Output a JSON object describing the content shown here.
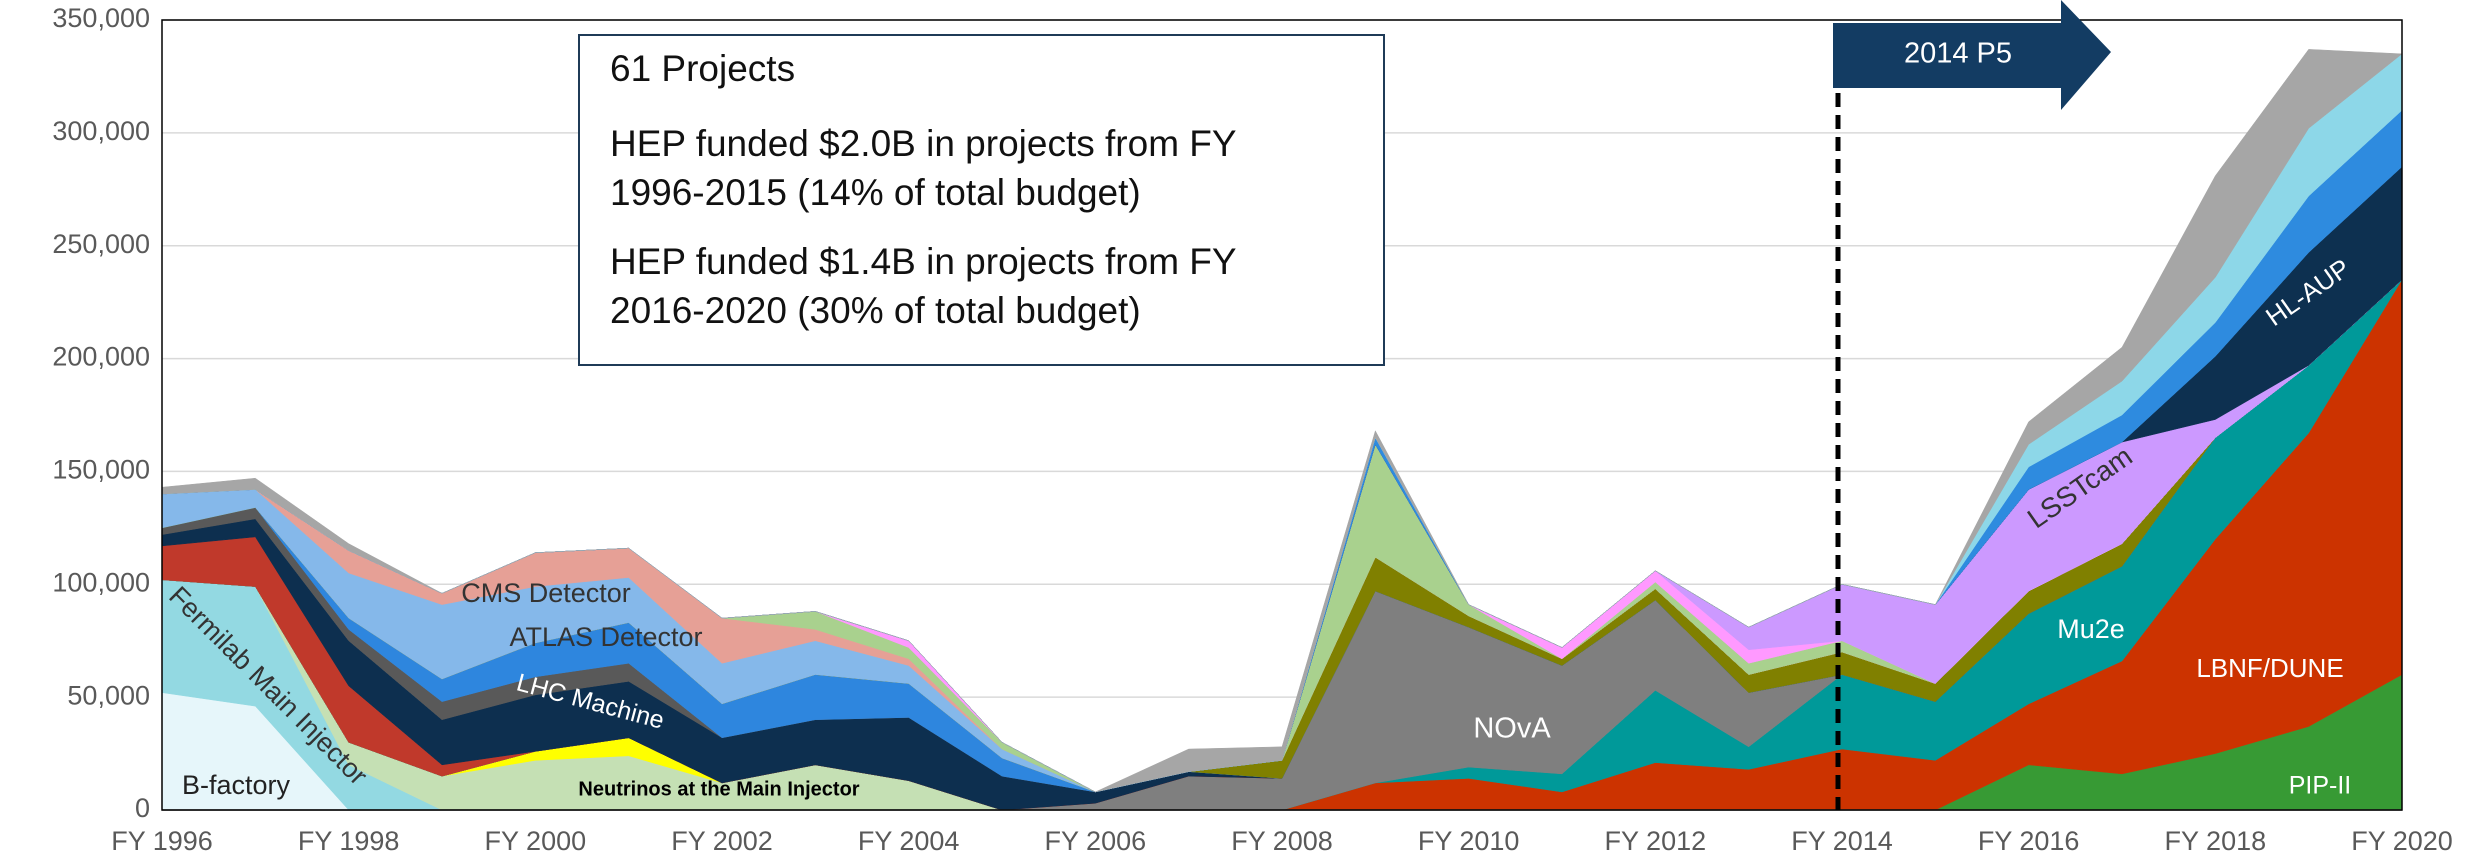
{
  "chart_data": {
    "type": "stacked_area",
    "categories": [
      "FY 1996",
      null,
      "FY 1998",
      null,
      "FY 2000",
      null,
      "FY 2002",
      null,
      "FY 2004",
      null,
      "FY 2006",
      null,
      "FY 2008",
      null,
      "FY 2010",
      null,
      "FY 2012",
      null,
      "FY 2014",
      null,
      "FY 2016",
      null,
      "FY 2018",
      null,
      "FY 2020"
    ],
    "ylim": [
      0,
      350000
    ],
    "yticks": [
      0,
      {
        "value": 50000,
        "label": "50,000"
      },
      {
        "value": 100000,
        "label": "100,000"
      },
      {
        "value": 150000,
        "label": "150,000"
      },
      {
        "value": 200000,
        "label": "200,000"
      },
      {
        "value": 250000,
        "label": "250,000"
      },
      {
        "value": 300000,
        "label": "300,000"
      },
      {
        "value": 350000,
        "label": "350,000"
      }
    ],
    "grid": true,
    "series": [
      {
        "name": "B-factory",
        "color": "#e6f6fa",
        "values": [
          52000,
          46000,
          0,
          0,
          0,
          0,
          0,
          0,
          0,
          0,
          0,
          0,
          0,
          0,
          0,
          0,
          0,
          0,
          0,
          0,
          0,
          0,
          0,
          0,
          0
        ]
      },
      {
        "name": "Fermilab Main Injector",
        "color": "#93d9e2",
        "values": [
          50000,
          53000,
          20000,
          0,
          0,
          0,
          0,
          0,
          0,
          0,
          0,
          0,
          0,
          0,
          0,
          0,
          0,
          0,
          0,
          0,
          0,
          0,
          0,
          0,
          0
        ]
      },
      {
        "name": "Neutrinos at the Main Injector",
        "color": "#c5e0b4",
        "values": [
          0,
          0,
          10000,
          15000,
          22000,
          24000,
          12000,
          20000,
          13000,
          0,
          0,
          0,
          0,
          0,
          0,
          0,
          0,
          0,
          0,
          0,
          0,
          0,
          0,
          0,
          0
        ]
      },
      {
        "color": "#ffff00",
        "values": [
          0,
          0,
          0,
          0,
          4000,
          8000,
          0,
          0,
          0,
          0,
          0,
          0,
          0,
          0,
          0,
          0,
          0,
          0,
          0,
          0,
          0,
          0,
          0,
          0,
          0
        ]
      },
      {
        "name": "PIP-II",
        "color": "#379a34",
        "values": [
          0,
          0,
          0,
          0,
          0,
          0,
          0,
          0,
          0,
          0,
          0,
          0,
          0,
          0,
          0,
          0,
          0,
          0,
          0,
          0,
          20000,
          16000,
          25000,
          37000,
          60000
        ]
      },
      {
        "name": "LBNF/DUNE",
        "color": "#cc3300",
        "values": [
          0,
          0,
          0,
          0,
          0,
          0,
          0,
          0,
          0,
          0,
          0,
          0,
          0,
          12000,
          14000,
          8000,
          21000,
          18000,
          27000,
          22000,
          27000,
          50000,
          95000,
          130000,
          175000
        ]
      },
      {
        "name": "Mu2e",
        "color": "#009999",
        "values": [
          0,
          0,
          0,
          0,
          0,
          0,
          0,
          0,
          0,
          0,
          0,
          0,
          0,
          0,
          5000,
          8000,
          32000,
          10000,
          33000,
          26000,
          40000,
          42000,
          45000,
          30000,
          0
        ]
      },
      {
        "name": "NOvA",
        "color": "#7f7f7f",
        "values": [
          0,
          0,
          0,
          0,
          0,
          0,
          0,
          0,
          0,
          0,
          3000,
          15000,
          14000,
          85000,
          62000,
          48000,
          40000,
          24000,
          0,
          0,
          0,
          0,
          0,
          0,
          0
        ]
      },
      {
        "color": "#c0392b",
        "values": [
          15000,
          22000,
          25000,
          5000,
          0,
          0,
          0,
          0,
          0,
          0,
          0,
          0,
          0,
          0,
          0,
          0,
          0,
          0,
          0,
          0,
          0,
          0,
          0,
          0,
          0
        ]
      },
      {
        "name": "LHC Machine",
        "color": "#0d2f4f",
        "values": [
          5000,
          8000,
          20000,
          20000,
          25000,
          25000,
          20000,
          20000,
          28000,
          15000,
          5000,
          2000,
          0,
          0,
          0,
          0,
          0,
          0,
          0,
          0,
          0,
          0,
          0,
          0,
          0
        ]
      },
      {
        "color": "#595959",
        "values": [
          3000,
          5000,
          5000,
          8000,
          8000,
          8000,
          0,
          0,
          0,
          0,
          0,
          0,
          0,
          0,
          0,
          0,
          0,
          0,
          0,
          0,
          0,
          0,
          0,
          0,
          0
        ]
      },
      {
        "name": "ATLAS Detector",
        "color": "#2e86de",
        "values": [
          0,
          0,
          5000,
          10000,
          15000,
          18000,
          15000,
          20000,
          15000,
          8000,
          0,
          0,
          0,
          0,
          0,
          0,
          0,
          0,
          0,
          0,
          0,
          0,
          0,
          0,
          0
        ]
      },
      {
        "color": "#808000",
        "values": [
          0,
          0,
          0,
          0,
          0,
          0,
          0,
          0,
          0,
          0,
          0,
          0,
          8000,
          15000,
          5000,
          3000,
          5000,
          8000,
          10000,
          8000,
          10000,
          10000,
          0,
          0,
          0
        ]
      },
      {
        "name": "CMS Detector",
        "color": "#85b8ea",
        "values": [
          15000,
          8000,
          20000,
          33000,
          25000,
          20000,
          18000,
          15000,
          8000,
          4000,
          0,
          0,
          0,
          0,
          0,
          0,
          0,
          0,
          0,
          0,
          0,
          0,
          0,
          0,
          0
        ]
      },
      {
        "color": "#e6a096",
        "values": [
          0,
          0,
          10000,
          5000,
          15000,
          13000,
          20000,
          5000,
          3000,
          0,
          0,
          0,
          0,
          0,
          0,
          0,
          0,
          0,
          0,
          0,
          0,
          0,
          0,
          0,
          0
        ]
      },
      {
        "color": "#a9d18e",
        "values": [
          0,
          0,
          0,
          0,
          0,
          0,
          0,
          8000,
          5000,
          3000,
          0,
          0,
          0,
          50000,
          5000,
          0,
          3000,
          5000,
          5000,
          0,
          0,
          0,
          0,
          0,
          0
        ]
      },
      {
        "color": "#ff99ff",
        "values": [
          0,
          0,
          0,
          0,
          0,
          0,
          0,
          0,
          3000,
          0,
          0,
          0,
          0,
          0,
          0,
          5000,
          5000,
          6000,
          0,
          0,
          0,
          0,
          0,
          0,
          0
        ]
      },
      {
        "name": "LSSTcam",
        "color": "#cc99ff",
        "values": [
          0,
          0,
          0,
          0,
          0,
          0,
          0,
          0,
          0,
          0,
          0,
          0,
          0,
          0,
          0,
          0,
          0,
          10000,
          25000,
          35000,
          45000,
          45000,
          8000,
          0,
          0
        ]
      },
      {
        "name": "HL-AUP",
        "color": "#0d3050",
        "values": [
          0,
          0,
          0,
          0,
          0,
          0,
          0,
          0,
          0,
          0,
          0,
          0,
          0,
          0,
          0,
          0,
          0,
          0,
          0,
          0,
          0,
          0,
          28000,
          50000,
          50000
        ]
      },
      {
        "color": "#2e8bdf",
        "values": [
          0,
          0,
          0,
          0,
          0,
          0,
          0,
          0,
          0,
          0,
          0,
          0,
          0,
          3000,
          0,
          0,
          0,
          0,
          0,
          0,
          10000,
          12000,
          15000,
          25000,
          25000
        ]
      },
      {
        "color": "#8dd7e8",
        "values": [
          0,
          0,
          0,
          0,
          0,
          0,
          0,
          0,
          0,
          0,
          0,
          0,
          0,
          0,
          0,
          0,
          0,
          0,
          0,
          0,
          10000,
          15000,
          20000,
          30000,
          25000
        ]
      },
      {
        "color": "#a6a6a6",
        "values": [
          3000,
          5000,
          3000,
          0,
          0,
          0,
          0,
          0,
          0,
          0,
          0,
          10000,
          6000,
          3000,
          0,
          0,
          0,
          0,
          0,
          0,
          10000,
          15000,
          45000,
          35000,
          0
        ]
      }
    ],
    "annotations": {
      "box": [
        [
          "61 Projects"
        ],
        [
          "HEP funded $2.0B in projects from FY",
          "1996-2015 (14% of total budget)"
        ],
        [
          "HEP funded $1.4B in projects from FY",
          "2016-2020 (30% of total budget)"
        ]
      ],
      "arrow": "2014 P5"
    }
  }
}
